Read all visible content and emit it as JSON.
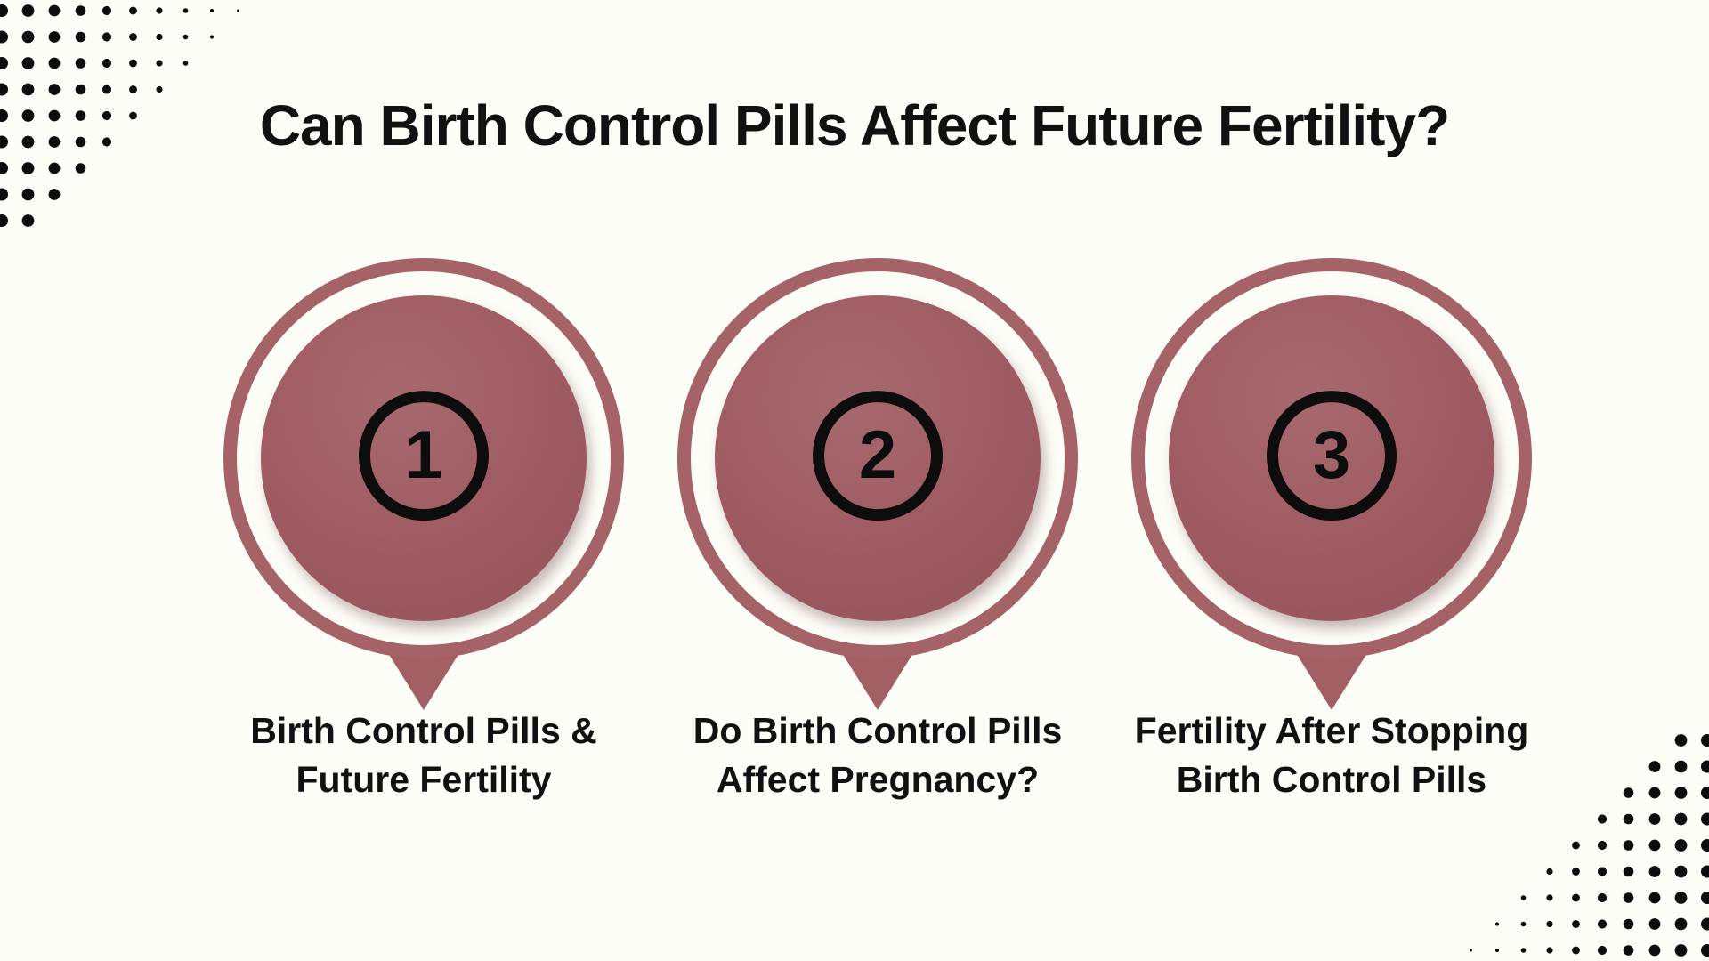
{
  "title": "Can Birth Control Pills Affect Future Fertility?",
  "steps": [
    {
      "number": "1",
      "label_line1": "Birth Control Pills &",
      "label_line2": "Future Fertility"
    },
    {
      "number": "2",
      "label_line1": "Do Birth Control Pills",
      "label_line2": "Affect Pregnancy?"
    },
    {
      "number": "3",
      "label_line1": "Fertility After Stopping",
      "label_line2": "Birth Control Pills"
    }
  ],
  "colors": {
    "background": "#fdfdf8",
    "circle_fill": "#9e5a60",
    "circle_ring": "#a56367",
    "pointer": "#a26065",
    "badge_outline": "#0d0d0d",
    "text": "#111111",
    "dots": "#0d0d0d"
  },
  "decorations": {
    "top_left": "halftone-dots-triangle",
    "bottom_right": "halftone-dots-triangle"
  }
}
